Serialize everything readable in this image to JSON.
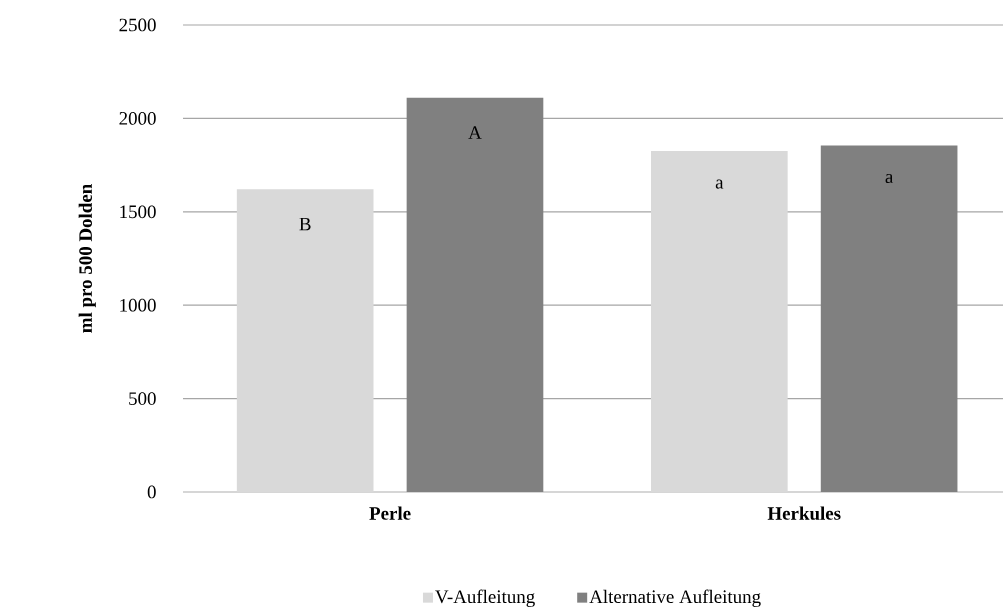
{
  "chart_data": {
    "type": "bar",
    "ylabel": "ml pro 500 Dolden",
    "categories": [
      "Perle",
      "Herkules"
    ],
    "series": [
      {
        "name": "V-Aufleitung",
        "color": "#d9d9d9",
        "values": [
          1620,
          1825
        ],
        "value_labels": [
          "B",
          "a"
        ]
      },
      {
        "name": "Alternative Aufleitung",
        "color": "#808080",
        "values": [
          2110,
          1855
        ],
        "value_labels": [
          "A",
          "a"
        ]
      }
    ],
    "ylim": [
      0,
      2500
    ],
    "yticks": [
      0,
      500,
      1000,
      1500,
      2000,
      2500
    ],
    "grid": "y",
    "legend": "bottom"
  }
}
